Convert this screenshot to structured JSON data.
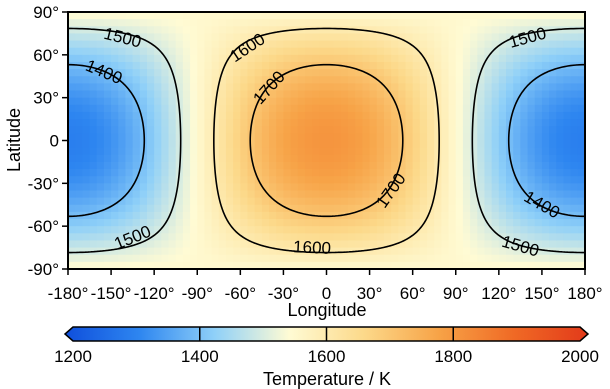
{
  "chart_data": {
    "type": "heatmap",
    "title": "",
    "xlabel": "Longitude",
    "ylabel": "Latitude",
    "xlim": [
      -180,
      180
    ],
    "ylim": [
      -90,
      90
    ],
    "x_ticks": [
      "-180°",
      "-150°",
      "-120°",
      "-90°",
      "-60°",
      "-30°",
      "0",
      "30°",
      "60°",
      "90°",
      "120°",
      "150°",
      "180°"
    ],
    "y_ticks": [
      "90°",
      "60°",
      "30°",
      "0",
      "-30°",
      "-60°",
      "-90°"
    ],
    "field": {
      "description_of_values": "temperature field",
      "center_value": 1800,
      "antipode_value": 1300,
      "edge_value": 1550
    },
    "contours": [
      {
        "level": 1400,
        "label": "1400"
      },
      {
        "level": 1500,
        "label": "1500"
      },
      {
        "level": 1600,
        "label": "1600"
      },
      {
        "level": 1700,
        "label": "1700"
      }
    ],
    "contour_labels": [
      {
        "text": "1500",
        "lon": -142,
        "lat": 72
      },
      {
        "text": "1400",
        "lon": -155,
        "lat": 48
      },
      {
        "text": "1600",
        "lon": -55,
        "lat": 65
      },
      {
        "text": "1700",
        "lon": -40,
        "lat": 37
      },
      {
        "text": "1500",
        "lon": 140,
        "lat": 72
      },
      {
        "text": "1700",
        "lon": 45,
        "lat": -35
      },
      {
        "text": "1400",
        "lon": 150,
        "lat": -45
      },
      {
        "text": "1500",
        "lon": -135,
        "lat": -68
      },
      {
        "text": "1600",
        "lon": -10,
        "lat": -75
      },
      {
        "text": "1500",
        "lon": 135,
        "lat": -74
      }
    ],
    "colorbar": {
      "label": "Temperature / K",
      "min": 1200,
      "max": 2000,
      "ticks": [
        "1200",
        "1400",
        "1600",
        "1800",
        "2000"
      ],
      "colors": [
        "#0f4fdc",
        "#2e86f0",
        "#8fd0f8",
        "#fffbd4",
        "#fcd98a",
        "#f7a347",
        "#f06a25",
        "#e23a1a"
      ]
    },
    "grid": false
  }
}
